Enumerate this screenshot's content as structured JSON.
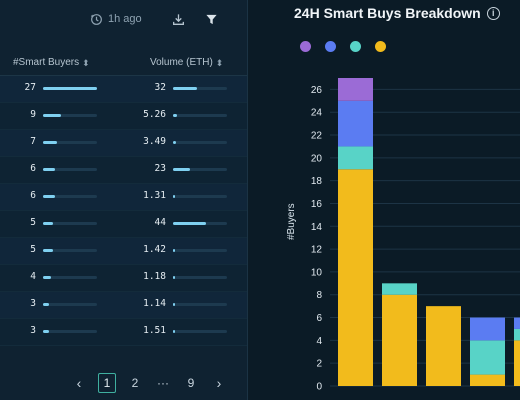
{
  "toolbar": {
    "time_label": "1h ago",
    "time_icon": "clock-refresh-icon",
    "download_icon": "download-icon",
    "filter_icon": "filter-icon"
  },
  "table": {
    "columns": [
      "#Smart Buyers",
      "Volume (ETH)"
    ],
    "rows": [
      {
        "buyers": "27",
        "buyers_level": 1.0,
        "volume": "32",
        "volume_level": 0.45
      },
      {
        "buyers": "9",
        "buyers_level": 0.33,
        "volume": "5.26",
        "volume_level": 0.07
      },
      {
        "buyers": "7",
        "buyers_level": 0.26,
        "volume": "3.49",
        "volume_level": 0.05
      },
      {
        "buyers": "6",
        "buyers_level": 0.22,
        "volume": "23",
        "volume_level": 0.32
      },
      {
        "buyers": "6",
        "buyers_level": 0.22,
        "volume": "1.31",
        "volume_level": 0.02
      },
      {
        "buyers": "5",
        "buyers_level": 0.19,
        "volume": "44",
        "volume_level": 0.61
      },
      {
        "buyers": "5",
        "buyers_level": 0.19,
        "volume": "1.42",
        "volume_level": 0.02
      },
      {
        "buyers": "4",
        "buyers_level": 0.15,
        "volume": "1.18",
        "volume_level": 0.02
      },
      {
        "buyers": "3",
        "buyers_level": 0.11,
        "volume": "1.14",
        "volume_level": 0.02
      },
      {
        "buyers": "3",
        "buyers_level": 0.11,
        "volume": "1.51",
        "volume_level": 0.02
      }
    ]
  },
  "pagination": {
    "prev": "‹",
    "current": "1",
    "next_page": "2",
    "ellipsis": "···",
    "last": "9",
    "next": "›"
  },
  "panel": {
    "title": "24H Smart Buys Breakdown",
    "info_icon": "info-icon"
  },
  "colors": {
    "purple": "#9b6bd6",
    "blue": "#5b7cf2",
    "teal": "#58d3c7",
    "yellow": "#f2bb1c",
    "bar_fill": "#7fd0f0",
    "accent": "#3fb0a0"
  },
  "chart_data": {
    "type": "bar",
    "stacked": true,
    "ylabel": "#Buyers",
    "xlabel": "",
    "ylim": [
      0,
      27
    ],
    "yticks": [
      0,
      2,
      4,
      6,
      8,
      10,
      12,
      14,
      16,
      18,
      20,
      22,
      24,
      26
    ],
    "grid": true,
    "legend_position": "top-left",
    "categories": [
      "",
      "",
      "",
      "",
      ""
    ],
    "series": [
      {
        "color": "#f2bb1c",
        "values": [
          19,
          8,
          7,
          1,
          4
        ]
      },
      {
        "color": "#58d3c7",
        "values": [
          2,
          1,
          0,
          3,
          1
        ]
      },
      {
        "color": "#5b7cf2",
        "values": [
          4,
          0,
          0,
          2,
          1
        ]
      },
      {
        "color": "#9b6bd6",
        "values": [
          2,
          0,
          0,
          0,
          0
        ]
      }
    ]
  }
}
